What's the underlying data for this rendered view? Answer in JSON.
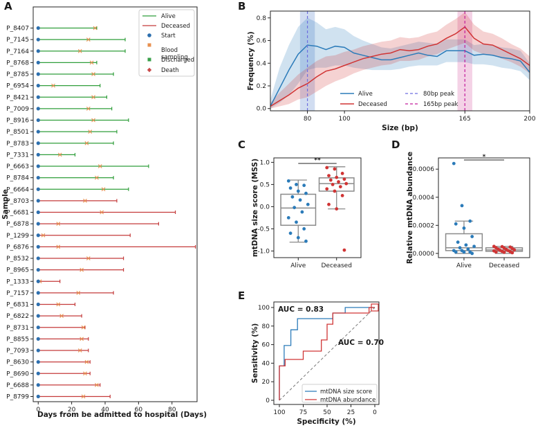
{
  "colors": {
    "alive": "#2f9e3a",
    "deceased": "#c43a3a",
    "blue": "#2b7bb9",
    "red": "#d03434",
    "start": "#2d6fae",
    "blood": "#e8904f",
    "discharged": "#3aa04a",
    "death": "#c84a4a",
    "band_blue": "#9ab3e0",
    "band_magenta": "#e69bc8",
    "peak80": "#6d6de0",
    "peak165": "#c21a9b"
  },
  "chart_data": [
    {
      "panel": "A",
      "type": "timeline",
      "xlabel": "Days from be admitted to hospital (Days)",
      "ylabel": "Sample",
      "xlim": [
        -3,
        95
      ],
      "xticks": [
        0,
        20,
        40,
        60,
        80
      ],
      "legend": {
        "position": "top-right",
        "entries": [
          {
            "label": "Alive",
            "kind": "line",
            "color_key": "alive"
          },
          {
            "label": "Deceased",
            "kind": "line",
            "color_key": "deceased"
          },
          {
            "label": "Start",
            "kind": "circle",
            "color_key": "start"
          },
          {
            "label": "Blood sampling",
            "kind": "square",
            "color_key": "blood"
          },
          {
            "label": "Discharged",
            "kind": "square",
            "color_key": "discharged"
          },
          {
            "label": "Death",
            "kind": "diamond",
            "color_key": "death"
          }
        ]
      },
      "samples": [
        {
          "id": "P_8407",
          "status": "Alive",
          "end": 35,
          "blood": 34
        },
        {
          "id": "P_7145",
          "status": "Alive",
          "end": 52,
          "blood": 30
        },
        {
          "id": "P_7164",
          "status": "Alive",
          "end": 52,
          "blood": 25
        },
        {
          "id": "P_8768",
          "status": "Alive",
          "end": 35,
          "blood": 32
        },
        {
          "id": "P_8785",
          "status": "Alive",
          "end": 45,
          "blood": 33
        },
        {
          "id": "P_6954",
          "status": "Alive",
          "end": 37,
          "blood": 9
        },
        {
          "id": "P_8421",
          "status": "Alive",
          "end": 41,
          "blood": 33
        },
        {
          "id": "P_7009",
          "status": "Alive",
          "end": 44,
          "blood": 30
        },
        {
          "id": "P_8916",
          "status": "Alive",
          "end": 54,
          "blood": 33
        },
        {
          "id": "P_8501",
          "status": "Alive",
          "end": 47,
          "blood": 31
        },
        {
          "id": "P_8783",
          "status": "Alive",
          "end": 45,
          "blood": 29
        },
        {
          "id": "P_7331",
          "status": "Alive",
          "end": 22,
          "blood": 13
        },
        {
          "id": "P_6663",
          "status": "Alive",
          "end": 66,
          "blood": 37
        },
        {
          "id": "P_8784",
          "status": "Alive",
          "end": 45,
          "blood": 35
        },
        {
          "id": "P_6664",
          "status": "Alive",
          "end": 54,
          "blood": 39
        },
        {
          "id": "P_8703",
          "status": "Deceased",
          "end": 47,
          "blood": 28
        },
        {
          "id": "P_6681",
          "status": "Deceased",
          "end": 82,
          "blood": 38
        },
        {
          "id": "P_6878",
          "status": "Deceased",
          "end": 72,
          "blood": 12
        },
        {
          "id": "P_1299",
          "status": "Deceased",
          "end": 55,
          "blood": 3
        },
        {
          "id": "P_6876",
          "status": "Deceased",
          "end": 94,
          "blood": 12
        },
        {
          "id": "P_8532",
          "status": "Deceased",
          "end": 51,
          "blood": 30
        },
        {
          "id": "P_8965",
          "status": "Deceased",
          "end": 51,
          "blood": 26
        },
        {
          "id": "P_1333",
          "status": "Deceased",
          "end": 13,
          "blood": 1
        },
        {
          "id": "P_7157",
          "status": "Deceased",
          "end": 45,
          "blood": 24
        },
        {
          "id": "P_6831",
          "status": "Deceased",
          "end": 22,
          "blood": 12
        },
        {
          "id": "P_6822",
          "status": "Deceased",
          "end": 26,
          "blood": 14
        },
        {
          "id": "P_8731",
          "status": "Deceased",
          "end": 28,
          "blood": 27
        },
        {
          "id": "P_8855",
          "status": "Deceased",
          "end": 30,
          "blood": 26
        },
        {
          "id": "P_7093",
          "status": "Deceased",
          "end": 30,
          "blood": 25
        },
        {
          "id": "P_8630",
          "status": "Deceased",
          "end": 31,
          "blood": 29
        },
        {
          "id": "P_8690",
          "status": "Deceased",
          "end": 31,
          "blood": 28
        },
        {
          "id": "P_6688",
          "status": "Deceased",
          "end": 37,
          "blood": 35
        },
        {
          "id": "P_8799",
          "status": "Deceased",
          "end": 43,
          "blood": 27
        }
      ]
    },
    {
      "panel": "B",
      "type": "line",
      "xlabel": "Size (bp)",
      "ylabel": "Frequency (%)",
      "xlim": [
        60,
        200
      ],
      "ylim": [
        -0.02,
        0.86
      ],
      "xticks": [
        80,
        100,
        165,
        200
      ],
      "yticks": [
        0.0,
        0.2,
        0.4,
        0.6,
        0.8
      ],
      "bands": [
        {
          "x0": 76,
          "x1": 84,
          "color_key": "band_blue"
        },
        {
          "x0": 161,
          "x1": 169,
          "color_key": "band_magenta"
        }
      ],
      "peaks": [
        {
          "x": 80,
          "label": "80bp peak",
          "color_key": "peak80"
        },
        {
          "x": 165,
          "label": "165bp peak",
          "color_key": "peak165"
        }
      ],
      "series": [
        {
          "name": "Alive",
          "color_key": "blue",
          "x": [
            60,
            65,
            70,
            75,
            80,
            85,
            90,
            95,
            100,
            105,
            110,
            115,
            120,
            125,
            130,
            135,
            140,
            145,
            150,
            155,
            160,
            165,
            170,
            175,
            180,
            185,
            190,
            195,
            200
          ],
          "y": [
            0.02,
            0.18,
            0.34,
            0.48,
            0.56,
            0.55,
            0.52,
            0.55,
            0.54,
            0.49,
            0.47,
            0.45,
            0.43,
            0.43,
            0.45,
            0.47,
            0.49,
            0.47,
            0.46,
            0.51,
            0.51,
            0.51,
            0.47,
            0.48,
            0.47,
            0.45,
            0.44,
            0.42,
            0.32
          ],
          "lower": [
            0.0,
            0.05,
            0.12,
            0.22,
            0.34,
            0.36,
            0.36,
            0.38,
            0.38,
            0.36,
            0.35,
            0.34,
            0.34,
            0.34,
            0.35,
            0.37,
            0.38,
            0.38,
            0.38,
            0.41,
            0.41,
            0.41,
            0.39,
            0.39,
            0.38,
            0.36,
            0.35,
            0.33,
            0.25
          ],
          "upper": [
            0.08,
            0.36,
            0.56,
            0.72,
            0.8,
            0.76,
            0.7,
            0.72,
            0.7,
            0.64,
            0.6,
            0.57,
            0.54,
            0.53,
            0.55,
            0.57,
            0.59,
            0.58,
            0.57,
            0.61,
            0.61,
            0.61,
            0.56,
            0.57,
            0.56,
            0.54,
            0.53,
            0.51,
            0.4
          ]
        },
        {
          "name": "Deceased",
          "color_key": "red",
          "x": [
            60,
            65,
            70,
            75,
            80,
            85,
            90,
            95,
            100,
            105,
            110,
            115,
            120,
            125,
            130,
            135,
            140,
            145,
            150,
            155,
            160,
            165,
            170,
            175,
            180,
            185,
            190,
            195,
            200
          ],
          "y": [
            0.02,
            0.07,
            0.12,
            0.18,
            0.22,
            0.28,
            0.33,
            0.35,
            0.38,
            0.41,
            0.44,
            0.46,
            0.48,
            0.49,
            0.52,
            0.51,
            0.52,
            0.55,
            0.57,
            0.62,
            0.66,
            0.72,
            0.62,
            0.57,
            0.56,
            0.52,
            0.48,
            0.44,
            0.38
          ],
          "lower": [
            0.0,
            0.02,
            0.04,
            0.08,
            0.1,
            0.15,
            0.2,
            0.24,
            0.27,
            0.31,
            0.34,
            0.36,
            0.38,
            0.39,
            0.42,
            0.42,
            0.43,
            0.46,
            0.48,
            0.52,
            0.55,
            0.58,
            0.51,
            0.48,
            0.47,
            0.44,
            0.41,
            0.37,
            0.31
          ],
          "upper": [
            0.05,
            0.14,
            0.22,
            0.3,
            0.36,
            0.42,
            0.46,
            0.47,
            0.5,
            0.52,
            0.55,
            0.57,
            0.59,
            0.6,
            0.63,
            0.62,
            0.63,
            0.66,
            0.68,
            0.74,
            0.79,
            0.85,
            0.74,
            0.68,
            0.66,
            0.62,
            0.57,
            0.53,
            0.46
          ]
        }
      ]
    },
    {
      "panel": "C",
      "type": "box",
      "xlabel": "",
      "ylabel": "mtDNA size score (MSS)",
      "ylim": [
        -1.15,
        1.1
      ],
      "yticks": [
        -1.0,
        -0.5,
        0.0,
        0.5,
        1.0
      ],
      "significance": "**",
      "groups": [
        {
          "name": "Alive",
          "color_key": "blue",
          "q1": -0.42,
          "median": -0.03,
          "q3": 0.28,
          "whisker_low": -0.8,
          "whisker_high": 0.6,
          "points": [
            0.58,
            0.5,
            0.48,
            0.42,
            0.35,
            0.3,
            0.22,
            0.15,
            0.05,
            -0.02,
            -0.12,
            -0.25,
            -0.35,
            -0.5,
            -0.6,
            -0.7,
            -0.78
          ]
        },
        {
          "name": "Deceased",
          "color_key": "red",
          "q1": 0.35,
          "median": 0.52,
          "q3": 0.65,
          "whisker_low": -0.05,
          "whisker_high": 0.9,
          "points": [
            0.88,
            0.85,
            0.75,
            0.7,
            0.66,
            0.62,
            0.6,
            0.56,
            0.52,
            0.5,
            0.45,
            0.4,
            0.35,
            0.25,
            0.05,
            -0.05,
            -0.98
          ]
        }
      ]
    },
    {
      "panel": "D",
      "type": "box",
      "xlabel": "",
      "ylabel": "Relative mtDNA abundance",
      "ylim": [
        -3e-05,
        0.00068
      ],
      "yticks": [
        0.0,
        0.0002,
        0.0004,
        0.0006
      ],
      "ytick_labels": [
        "0.0000",
        "0.0002",
        "0.0004",
        "0.0006"
      ],
      "significance": "*",
      "groups": [
        {
          "name": "Alive",
          "color_key": "blue",
          "q1": 2e-05,
          "median": 4e-05,
          "q3": 0.00014,
          "whisker_low": 0.0,
          "whisker_high": 0.00023,
          "points": [
            0.00064,
            0.00034,
            0.00023,
            0.00021,
            0.00018,
            0.00012,
            8e-05,
            6e-05,
            5e-05,
            4e-05,
            3e-05,
            2e-05,
            2e-05,
            1e-05,
            1e-05,
            1e-05,
            0.0
          ]
        },
        {
          "name": "Deceased",
          "color_key": "red",
          "q1": 1.5e-05,
          "median": 2.5e-05,
          "q3": 4e-05,
          "whisker_low": 0.0,
          "whisker_high": 5e-05,
          "points": [
            5e-05,
            4.8e-05,
            4.5e-05,
            4e-05,
            3.8e-05,
            3.5e-05,
            3e-05,
            2.8e-05,
            2.5e-05,
            2.2e-05,
            2e-05,
            1.8e-05,
            1.5e-05,
            1.2e-05,
            1e-05,
            8e-06,
            5e-06
          ]
        }
      ]
    },
    {
      "panel": "E",
      "type": "roc",
      "xlabel": "Specificity (%)",
      "ylabel": "Sensitivity (%)",
      "xlim": [
        100,
        0
      ],
      "ylim": [
        0,
        100
      ],
      "xticks": [
        100,
        75,
        50,
        25,
        0
      ],
      "yticks": [
        0,
        20,
        40,
        60,
        80,
        100
      ],
      "legend_position": "bottom-right",
      "series": [
        {
          "name": "mtDNA size score",
          "color_key": "blue",
          "auc_label": "AUC = 0.83",
          "specificity": [
            100,
            100,
            95,
            95,
            88,
            88,
            81,
            81,
            75,
            75,
            62,
            62,
            44,
            44,
            31,
            31,
            0
          ],
          "sensitivity": [
            0,
            37,
            37,
            59,
            59,
            76,
            76,
            88,
            88,
            88,
            88,
            88,
            88,
            94,
            94,
            100,
            100
          ]
        },
        {
          "name": "mtDNA abundance",
          "color_key": "red",
          "auc_label": "AUC = 0.70",
          "specificity": [
            100,
            100,
            94,
            94,
            75,
            75,
            69,
            69,
            56,
            56,
            50,
            50,
            44,
            44,
            25,
            25,
            6,
            6,
            0
          ],
          "sensitivity": [
            0,
            37,
            37,
            44,
            44,
            53,
            53,
            53,
            53,
            65,
            65,
            82,
            82,
            94,
            94,
            94,
            94,
            100,
            100
          ]
        }
      ]
    }
  ]
}
